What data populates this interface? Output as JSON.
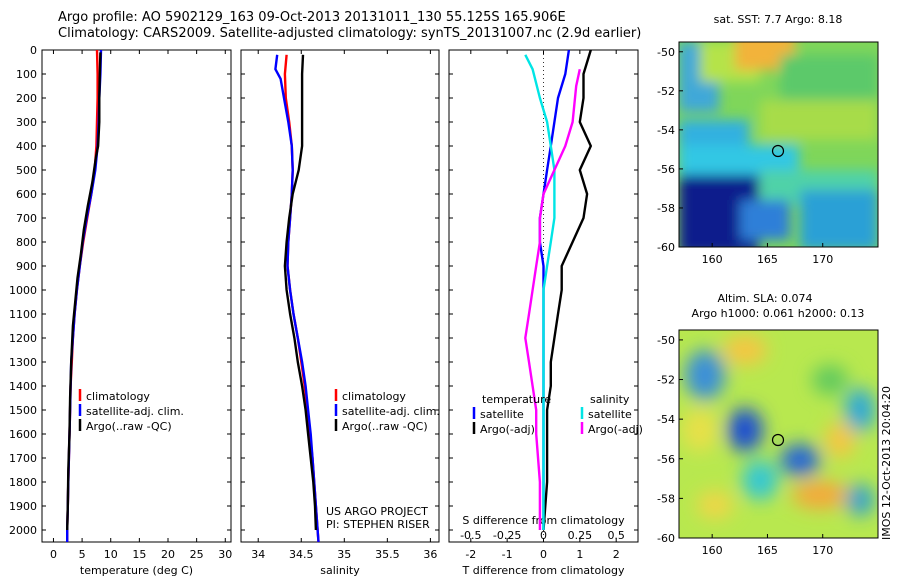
{
  "header": {
    "title_line1": "Argo profile: AO 5902129_163 09-Oct-2013 20131011_130 55.125S 165.906E",
    "title_line2": "Climatology: CARS2009. Satellite-adjusted climatology: synTS_20131007.nc (2.9d earlier)"
  },
  "colors": {
    "climatology": "#ff0000",
    "satellite": "#0000ff",
    "argo": "#000000",
    "satellite_diff": "#00e5e5",
    "argo_sal_diff": "#ff00ff"
  },
  "chart_data": [
    {
      "type": "line",
      "id": "temperature_profile",
      "xlabel": "temperature (deg C)",
      "xlim": [
        -2,
        31
      ],
      "xticks": [
        0,
        5,
        10,
        15,
        20,
        25,
        30
      ],
      "ylim": [
        2050,
        0
      ],
      "yticks": [
        0,
        100,
        200,
        300,
        400,
        500,
        600,
        700,
        800,
        900,
        1000,
        1100,
        1200,
        1300,
        1400,
        1500,
        1600,
        1700,
        1800,
        1900,
        2000
      ],
      "legend": [
        "climatology",
        "satellite-adj. clim.",
        "Argo(..raw -QC)"
      ],
      "legend_position": "lower-center",
      "series": [
        {
          "name": "climatology",
          "color": "#ff0000",
          "points": [
            [
              7.6,
              0
            ],
            [
              7.7,
              100
            ],
            [
              7.7,
              200
            ],
            [
              7.6,
              300
            ],
            [
              7.5,
              400
            ],
            [
              7.2,
              500
            ],
            [
              6.6,
              600
            ],
            [
              5.9,
              700
            ],
            [
              5.2,
              800
            ],
            [
              4.6,
              900
            ],
            [
              4.1,
              1000
            ],
            [
              3.7,
              1100
            ],
            [
              3.4,
              1200
            ],
            [
              3.2,
              1300
            ],
            [
              3.0,
              1400
            ],
            [
              2.9,
              1500
            ],
            [
              2.8,
              1600
            ],
            [
              2.7,
              1700
            ],
            [
              2.6,
              1800
            ],
            [
              2.5,
              1900
            ],
            [
              2.4,
              2000
            ],
            [
              2.4,
              2050
            ]
          ]
        },
        {
          "name": "satellite-adj. clim.",
          "color": "#0000ff",
          "points": [
            [
              8.3,
              0
            ],
            [
              8.2,
              100
            ],
            [
              8.0,
              200
            ],
            [
              7.9,
              300
            ],
            [
              7.7,
              400
            ],
            [
              7.3,
              500
            ],
            [
              6.6,
              600
            ],
            [
              5.8,
              700
            ],
            [
              5.1,
              800
            ],
            [
              4.6,
              900
            ],
            [
              4.1,
              1000
            ],
            [
              3.7,
              1100
            ],
            [
              3.4,
              1200
            ],
            [
              3.1,
              1300
            ],
            [
              3.0,
              1400
            ],
            [
              2.9,
              1500
            ],
            [
              2.8,
              1600
            ],
            [
              2.7,
              1700
            ],
            [
              2.6,
              1800
            ],
            [
              2.5,
              1900
            ],
            [
              2.4,
              2000
            ],
            [
              2.4,
              2050
            ]
          ]
        },
        {
          "name": "Argo(..raw -QC)",
          "color": "#000000",
          "points": [
            [
              8.2,
              10
            ],
            [
              8.1,
              100
            ],
            [
              8.0,
              200
            ],
            [
              8.0,
              300
            ],
            [
              7.8,
              400
            ],
            [
              7.4,
              450
            ],
            [
              6.8,
              550
            ],
            [
              6.0,
              650
            ],
            [
              5.3,
              750
            ],
            [
              4.8,
              850
            ],
            [
              4.2,
              950
            ],
            [
              3.8,
              1050
            ],
            [
              3.4,
              1150
            ],
            [
              3.1,
              1300
            ],
            [
              2.9,
              1450
            ],
            [
              2.8,
              1600
            ],
            [
              2.6,
              1750
            ],
            [
              2.5,
              1900
            ],
            [
              2.4,
              2000
            ]
          ]
        }
      ]
    },
    {
      "type": "line",
      "id": "salinity_profile",
      "xlabel": "salinity",
      "xlim": [
        33.8,
        36.1
      ],
      "xticks": [
        34,
        34.5,
        35,
        35.5,
        36
      ],
      "ylim": [
        2050,
        0
      ],
      "legend": [
        "climatology",
        "satellite-adj. clim.",
        "Argo(..raw -QC)"
      ],
      "legend_position": "lower-right",
      "annotations": [
        "US ARGO PROJECT",
        "PI: STEPHEN RISER"
      ],
      "series": [
        {
          "name": "climatology",
          "color": "#ff0000",
          "points": [
            [
              34.33,
              20
            ],
            [
              34.31,
              100
            ],
            [
              34.32,
              200
            ],
            [
              34.36,
              300
            ],
            [
              34.39,
              400
            ],
            [
              34.4,
              500
            ],
            [
              34.39,
              600
            ],
            [
              34.37,
              700
            ],
            [
              34.35,
              800
            ],
            [
              34.34,
              900
            ],
            [
              34.37,
              1000
            ],
            [
              34.41,
              1100
            ],
            [
              34.46,
              1200
            ],
            [
              34.5,
              1300
            ],
            [
              34.54,
              1400
            ],
            [
              34.57,
              1500
            ],
            [
              34.6,
              1600
            ],
            [
              34.63,
              1700
            ],
            [
              34.65,
              1800
            ],
            [
              34.67,
              1900
            ],
            [
              34.69,
              2000
            ],
            [
              34.7,
              2050
            ]
          ]
        },
        {
          "name": "satellite-adj. clim.",
          "color": "#0000ff",
          "points": [
            [
              34.22,
              20
            ],
            [
              34.2,
              80
            ],
            [
              34.26,
              120
            ],
            [
              34.3,
              200
            ],
            [
              34.35,
              300
            ],
            [
              34.39,
              400
            ],
            [
              34.4,
              500
            ],
            [
              34.39,
              600
            ],
            [
              34.37,
              700
            ],
            [
              34.35,
              800
            ],
            [
              34.34,
              900
            ],
            [
              34.37,
              1000
            ],
            [
              34.41,
              1100
            ],
            [
              34.46,
              1200
            ],
            [
              34.51,
              1300
            ],
            [
              34.55,
              1400
            ],
            [
              34.58,
              1500
            ],
            [
              34.61,
              1600
            ],
            [
              34.63,
              1700
            ],
            [
              34.65,
              1800
            ],
            [
              34.67,
              1900
            ],
            [
              34.69,
              2000
            ],
            [
              34.7,
              2050
            ]
          ]
        },
        {
          "name": "Argo(..raw -QC)",
          "color": "#000000",
          "points": [
            [
              34.52,
              20
            ],
            [
              34.51,
              100
            ],
            [
              34.51,
              200
            ],
            [
              34.51,
              300
            ],
            [
              34.51,
              400
            ],
            [
              34.47,
              500
            ],
            [
              34.4,
              600
            ],
            [
              34.36,
              700
            ],
            [
              34.33,
              800
            ],
            [
              34.31,
              900
            ],
            [
              34.33,
              1000
            ],
            [
              34.37,
              1100
            ],
            [
              34.42,
              1200
            ],
            [
              34.46,
              1300
            ],
            [
              34.51,
              1400
            ],
            [
              34.55,
              1500
            ],
            [
              34.58,
              1600
            ],
            [
              34.61,
              1700
            ],
            [
              34.64,
              1800
            ],
            [
              34.66,
              1900
            ],
            [
              34.67,
              2000
            ]
          ]
        }
      ]
    },
    {
      "type": "line",
      "id": "difference_profile",
      "xlabel": "T difference from climatology",
      "xlabel_top": "S difference from climatology",
      "xlim": [
        -2.6,
        2.6
      ],
      "xticks": [
        -2,
        -1,
        0,
        1,
        2
      ],
      "xtick_labels": [
        "-2",
        "-1",
        "0",
        "1",
        "2"
      ],
      "sticks": [
        -0.5,
        -0.25,
        0,
        0.25,
        0.5
      ],
      "stick_labels": [
        "-0.5",
        "-0.25",
        "0",
        "0.25",
        "0.5"
      ],
      "ylim": [
        2050,
        0
      ],
      "legend": [
        "temperature",
        "satellite",
        "Argo(-adj)",
        "salinity",
        "satellite",
        "Argo(-adj)"
      ],
      "series": [
        {
          "name": "satellite",
          "color": "#0000ff",
          "points": [
            [
              0.7,
              0
            ],
            [
              0.6,
              100
            ],
            [
              0.4,
              200
            ],
            [
              0.3,
              300
            ],
            [
              0.2,
              400
            ],
            [
              0.1,
              500
            ],
            [
              0.0,
              600
            ],
            [
              -0.1,
              700
            ],
            [
              -0.1,
              800
            ],
            [
              0.0,
              900
            ],
            [
              0.0,
              1000
            ],
            [
              0.0,
              1200
            ],
            [
              0.0,
              1500
            ],
            [
              0.0,
              1800
            ],
            [
              0.0,
              2000
            ]
          ]
        },
        {
          "name": "Argo(-adj)",
          "color": "#000000",
          "points": [
            [
              1.3,
              0
            ],
            [
              1.1,
              100
            ],
            [
              1.1,
              200
            ],
            [
              1.0,
              300
            ],
            [
              1.3,
              400
            ],
            [
              1.0,
              500
            ],
            [
              1.2,
              600
            ],
            [
              1.1,
              700
            ],
            [
              0.8,
              800
            ],
            [
              0.5,
              900
            ],
            [
              0.5,
              1000
            ],
            [
              0.4,
              1100
            ],
            [
              0.3,
              1200
            ],
            [
              0.2,
              1300
            ],
            [
              0.2,
              1400
            ],
            [
              0.1,
              1500
            ],
            [
              0.1,
              1600
            ],
            [
              0.1,
              1800
            ],
            [
              0.0,
              2000
            ]
          ]
        },
        {
          "name": "satellite",
          "color": "#00e5e5",
          "points": [
            [
              -0.5,
              20
            ],
            [
              -0.3,
              80
            ],
            [
              -0.1,
              200
            ],
            [
              0.1,
              300
            ],
            [
              0.2,
              400
            ],
            [
              0.3,
              500
            ],
            [
              0.3,
              600
            ],
            [
              0.3,
              700
            ],
            [
              0.2,
              800
            ],
            [
              0.1,
              900
            ],
            [
              0.0,
              1000
            ],
            [
              0.0,
              1200
            ],
            [
              0.0,
              1500
            ],
            [
              0.0,
              1800
            ],
            [
              0.0,
              2000
            ]
          ]
        },
        {
          "name": "Argo(-adj)",
          "color": "#ff00ff",
          "points": [
            [
              1.0,
              80
            ],
            [
              0.9,
              150
            ],
            [
              0.8,
              300
            ],
            [
              0.6,
              400
            ],
            [
              0.3,
              500
            ],
            [
              0.0,
              600
            ],
            [
              -0.1,
              700
            ],
            [
              -0.1,
              800
            ],
            [
              -0.2,
              900
            ],
            [
              -0.3,
              1000
            ],
            [
              -0.4,
              1100
            ],
            [
              -0.5,
              1200
            ],
            [
              -0.4,
              1300
            ],
            [
              -0.3,
              1400
            ],
            [
              -0.2,
              1500
            ],
            [
              -0.2,
              1600
            ],
            [
              -0.1,
              1800
            ],
            [
              -0.1,
              2000
            ]
          ]
        }
      ]
    },
    {
      "type": "heatmap",
      "id": "sst_map",
      "title": "sat. SST: 7.7 Argo: 8.18",
      "xlim": [
        157,
        175
      ],
      "xticks": [
        160,
        165,
        170
      ],
      "ylim": [
        -60,
        -49.5
      ],
      "yticks": [
        -50,
        -52,
        -54,
        -56,
        -58,
        -60
      ],
      "marker": {
        "lon": 165.906,
        "lat": -55.125
      }
    },
    {
      "type": "heatmap",
      "id": "sla_map",
      "title_line1": "Altim. SLA: 0.074",
      "title_line2": "Argo h1000: 0.061 h2000: 0.13",
      "xlim": [
        157,
        175
      ],
      "xticks": [
        160,
        165,
        170
      ],
      "ylim": [
        -60,
        -49.5
      ],
      "yticks": [
        -50,
        -52,
        -54,
        -56,
        -58,
        -60
      ],
      "marker": {
        "lon": 165.906,
        "lat": -55.125
      }
    }
  ],
  "footer": {
    "imos_stamp": "IMOS 12-Oct-2013 20:04:20"
  }
}
